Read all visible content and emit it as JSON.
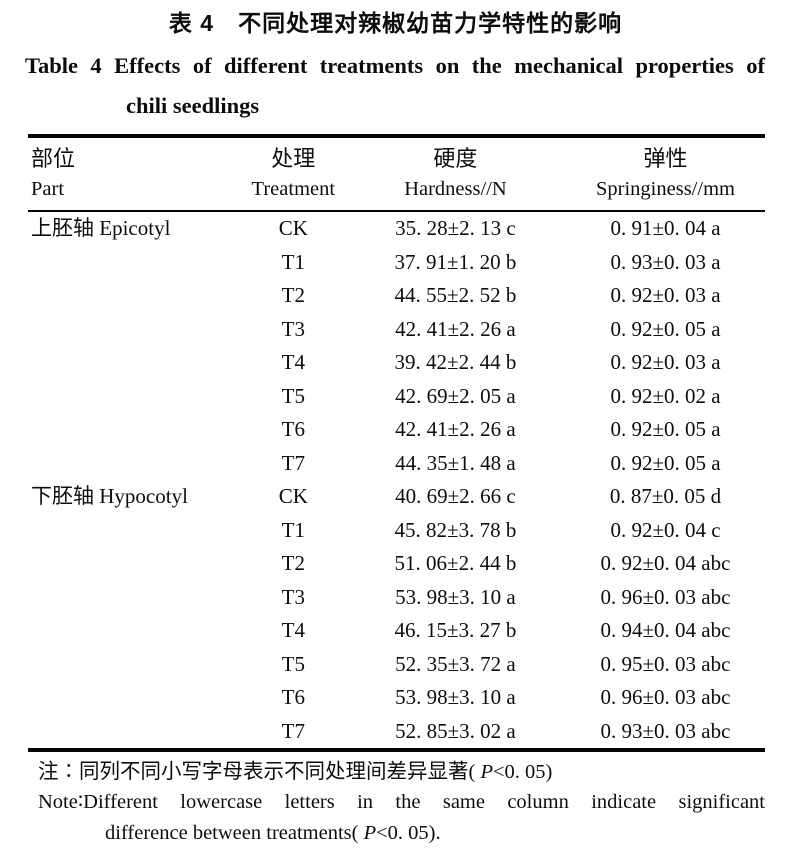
{
  "title": {
    "zh": "表 4　不同处理对辣椒幼苗力学特性的影响",
    "en_line1": "Table 4   Effects of different treatments on the mechanical properties of",
    "en_line2": "chili seedlings"
  },
  "table": {
    "headers": {
      "part_zh": "部位",
      "part_en": "Part",
      "treatment_zh": "处理",
      "treatment_en": "Treatment",
      "hardness_zh": "硬度",
      "hardness_en": "Hardness//N",
      "springiness_zh": "弹性",
      "springiness_en": "Springiness//mm"
    },
    "groups": [
      {
        "part": "上胚轴 Epicotyl",
        "rows": [
          {
            "treatment": "CK",
            "hardness": "35. 28±2. 13 c",
            "springiness": "0. 91±0. 04 a"
          },
          {
            "treatment": "T1",
            "hardness": "37. 91±1. 20 b",
            "springiness": "0. 93±0. 03 a"
          },
          {
            "treatment": "T2",
            "hardness": "44. 55±2. 52 b",
            "springiness": "0. 92±0. 03 a"
          },
          {
            "treatment": "T3",
            "hardness": "42. 41±2. 26 a",
            "springiness": "0. 92±0. 05 a"
          },
          {
            "treatment": "T4",
            "hardness": "39. 42±2. 44 b",
            "springiness": "0. 92±0. 03 a"
          },
          {
            "treatment": "T5",
            "hardness": "42. 69±2. 05 a",
            "springiness": "0. 92±0. 02 a"
          },
          {
            "treatment": "T6",
            "hardness": "42. 41±2. 26 a",
            "springiness": "0. 92±0. 05 a"
          },
          {
            "treatment": "T7",
            "hardness": "44. 35±1. 48 a",
            "springiness": "0. 92±0. 05 a"
          }
        ]
      },
      {
        "part": "下胚轴 Hypocotyl",
        "rows": [
          {
            "treatment": "CK",
            "hardness": "40. 69±2. 66 c",
            "springiness": "0. 87±0. 05 d"
          },
          {
            "treatment": "T1",
            "hardness": "45. 82±3. 78 b",
            "springiness": "0. 92±0. 04 c"
          },
          {
            "treatment": "T2",
            "hardness": "51. 06±2. 44 b",
            "springiness": "0. 92±0. 04 abc"
          },
          {
            "treatment": "T3",
            "hardness": "53. 98±3. 10 a",
            "springiness": "0. 96±0. 03 abc"
          },
          {
            "treatment": "T4",
            "hardness": "46. 15±3. 27 b",
            "springiness": "0. 94±0. 04 abc"
          },
          {
            "treatment": "T5",
            "hardness": "52. 35±3. 72 a",
            "springiness": "0. 95±0. 03 abc"
          },
          {
            "treatment": "T6",
            "hardness": "53. 98±3. 10 a",
            "springiness": "0. 96±0. 03 abc"
          },
          {
            "treatment": "T7",
            "hardness": "52. 85±3. 02 a",
            "springiness": "0. 93±0. 03 abc"
          }
        ]
      }
    ]
  },
  "notes": {
    "zh_prefix": "注∶同列不同小写字母表示不同处理间差异显著( ",
    "zh_p": "P",
    "zh_suffix": "<0. 05)",
    "en_line1": "Note∶Different lowercase letters in the same column indicate significant",
    "en2_prefix": "difference between treatments( ",
    "en2_p": "P",
    "en2_suffix": "<0. 05)."
  },
  "colors": {
    "text": "#0d0d0d",
    "rule": "#060606",
    "background": "#ffffff"
  }
}
